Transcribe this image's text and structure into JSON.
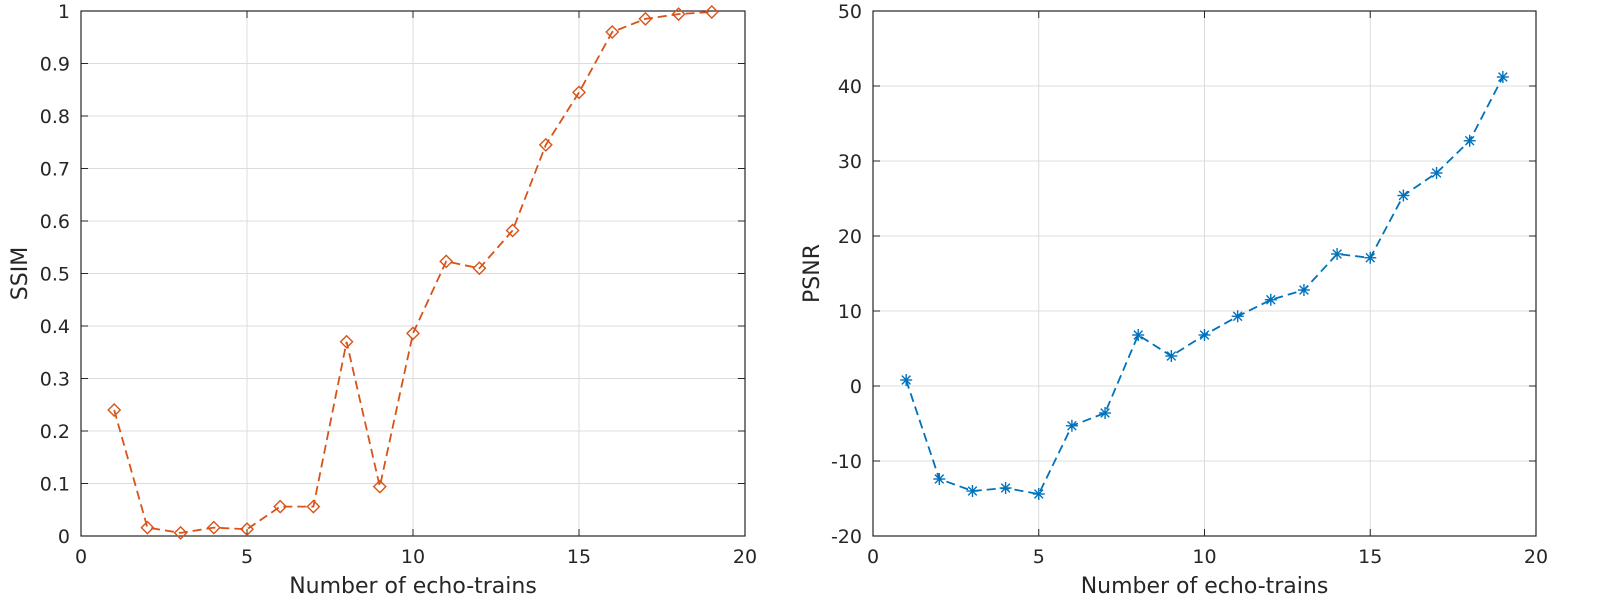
{
  "chart_data": [
    {
      "type": "line",
      "xlabel": "Number of echo-trains",
      "ylabel": "SSIM",
      "xlim": [
        0,
        20
      ],
      "ylim": [
        0,
        1
      ],
      "xticks": [
        0,
        5,
        10,
        15,
        20
      ],
      "yticks": [
        0,
        0.1,
        0.2,
        0.3,
        0.4,
        0.5,
        0.6,
        0.7,
        0.8,
        0.9,
        1
      ],
      "xtick_labels": [
        "0",
        "5",
        "10",
        "15",
        "20"
      ],
      "ytick_labels": [
        "0",
        "0.1",
        "0.2",
        "0.3",
        "0.4",
        "0.5",
        "0.6",
        "0.7",
        "0.8",
        "0.9",
        "1"
      ],
      "grid": true,
      "series": [
        {
          "color": "#d95319",
          "marker": "diamond",
          "line_style": "dashed",
          "x": [
            1,
            2,
            3,
            4,
            5,
            6,
            7,
            8,
            9,
            10,
            11,
            12,
            13,
            14,
            15,
            16,
            17,
            18,
            19
          ],
          "y": [
            0.24,
            0.016,
            0.006,
            0.016,
            0.013,
            0.056,
            0.056,
            0.37,
            0.094,
            0.386,
            0.523,
            0.51,
            0.582,
            0.745,
            0.845,
            0.96,
            0.985,
            0.994,
            0.998
          ]
        }
      ]
    },
    {
      "type": "line",
      "xlabel": "Number of echo-trains",
      "ylabel": "PSNR",
      "xlim": [
        0,
        20
      ],
      "ylim": [
        -20,
        50
      ],
      "xticks": [
        0,
        5,
        10,
        15,
        20
      ],
      "yticks": [
        -20,
        -10,
        0,
        10,
        20,
        30,
        40,
        50
      ],
      "xtick_labels": [
        "0",
        "5",
        "10",
        "15",
        "20"
      ],
      "ytick_labels": [
        "-20",
        "-10",
        "0",
        "10",
        "20",
        "30",
        "40",
        "50"
      ],
      "grid": true,
      "series": [
        {
          "color": "#0072bd",
          "marker": "asterisk",
          "line_style": "dashed",
          "x": [
            1,
            2,
            3,
            4,
            5,
            6,
            7,
            8,
            9,
            10,
            11,
            12,
            13,
            14,
            15,
            16,
            17,
            18,
            19
          ],
          "y": [
            0.8,
            -12.4,
            -14.0,
            -13.6,
            -14.4,
            -5.3,
            -3.6,
            6.8,
            4.0,
            6.8,
            9.3,
            11.5,
            12.8,
            17.6,
            17.1,
            25.4,
            28.4,
            32.7,
            41.2
          ]
        }
      ]
    }
  ]
}
